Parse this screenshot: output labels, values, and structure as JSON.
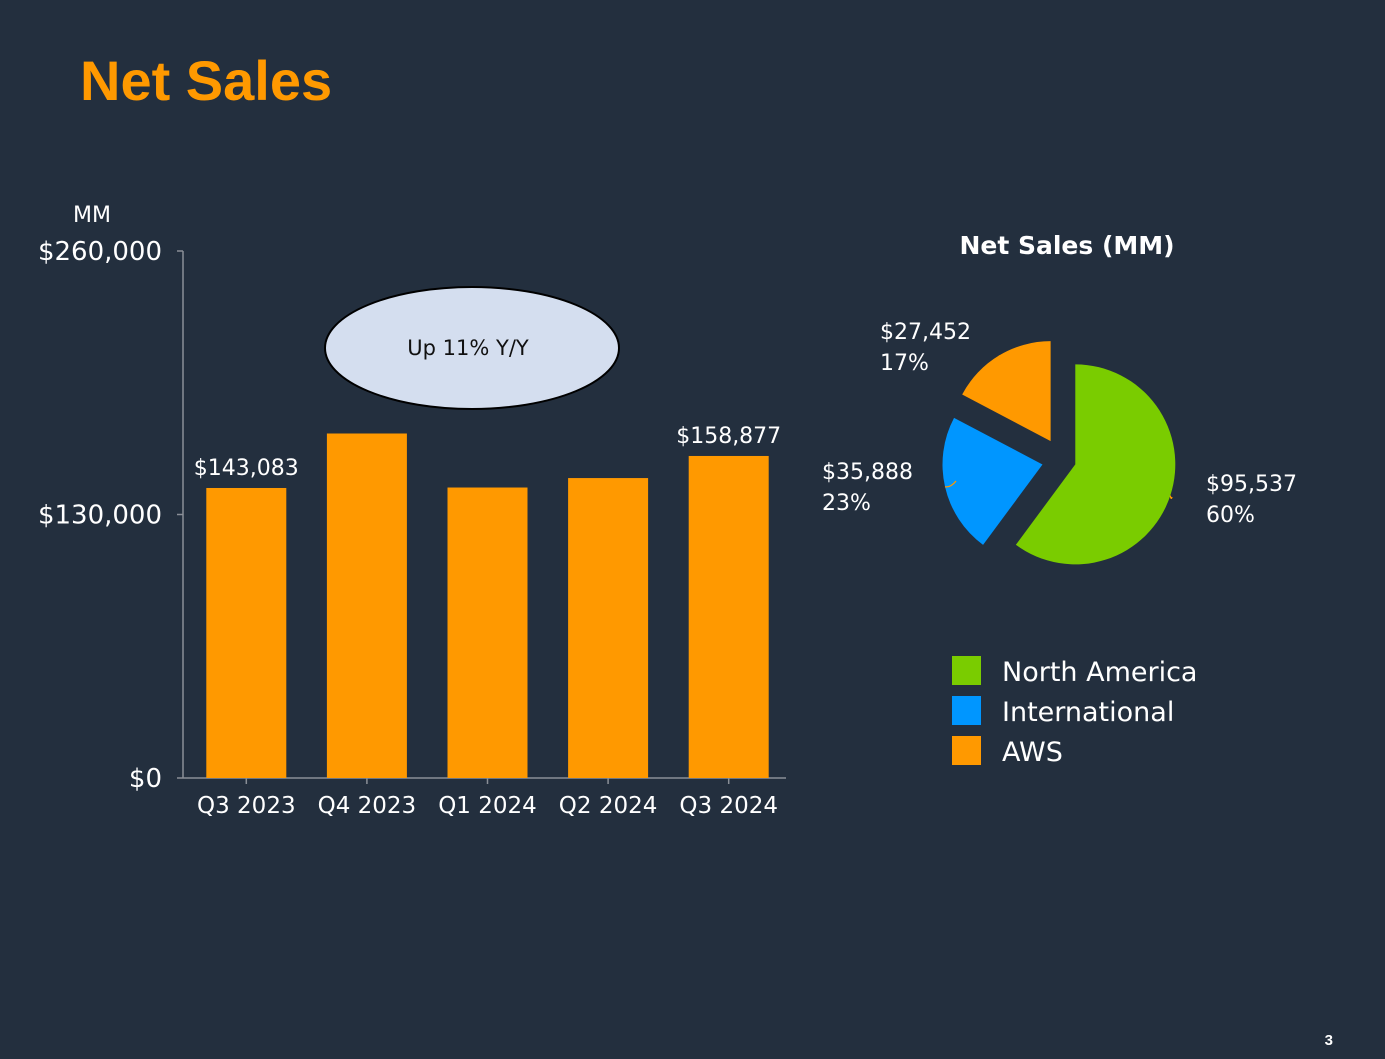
{
  "slide": {
    "title": "Net Sales",
    "page_number": "3",
    "background": "#232f3e",
    "title_color": "#ff9900"
  },
  "chart_data": [
    {
      "type": "bar",
      "unit_label": "MM",
      "categories": [
        "Q3 2023",
        "Q4 2023",
        "Q1 2024",
        "Q2 2024",
        "Q3 2024"
      ],
      "values": [
        143083,
        169961,
        143313,
        147977,
        158877
      ],
      "data_labels": [
        "$143,083",
        "",
        "",
        "",
        "$158,877"
      ],
      "yticks": [
        "$0",
        "$130,000",
        "$260,000"
      ],
      "ytick_values": [
        0,
        130000,
        260000
      ],
      "ylim": [
        0,
        260000
      ],
      "bar_color": "#ff9900",
      "callout": "Up 11% Y/Y",
      "callout_fill": "#d4deef"
    },
    {
      "type": "pie",
      "title": "Net Sales (MM)",
      "slices": [
        {
          "name": "North America",
          "value": 95537,
          "label_value": "$95,537",
          "label_pct": "60%",
          "color": "#7acc00"
        },
        {
          "name": "International",
          "value": 35888,
          "label_value": "$35,888",
          "label_pct": "23%",
          "color": "#0096ff"
        },
        {
          "name": "AWS",
          "value": 27452,
          "label_value": "$27,452",
          "label_pct": "17%",
          "color": "#ff9900"
        }
      ],
      "legend": [
        "North America",
        "International",
        "AWS"
      ],
      "legend_position": "bottom"
    }
  ]
}
